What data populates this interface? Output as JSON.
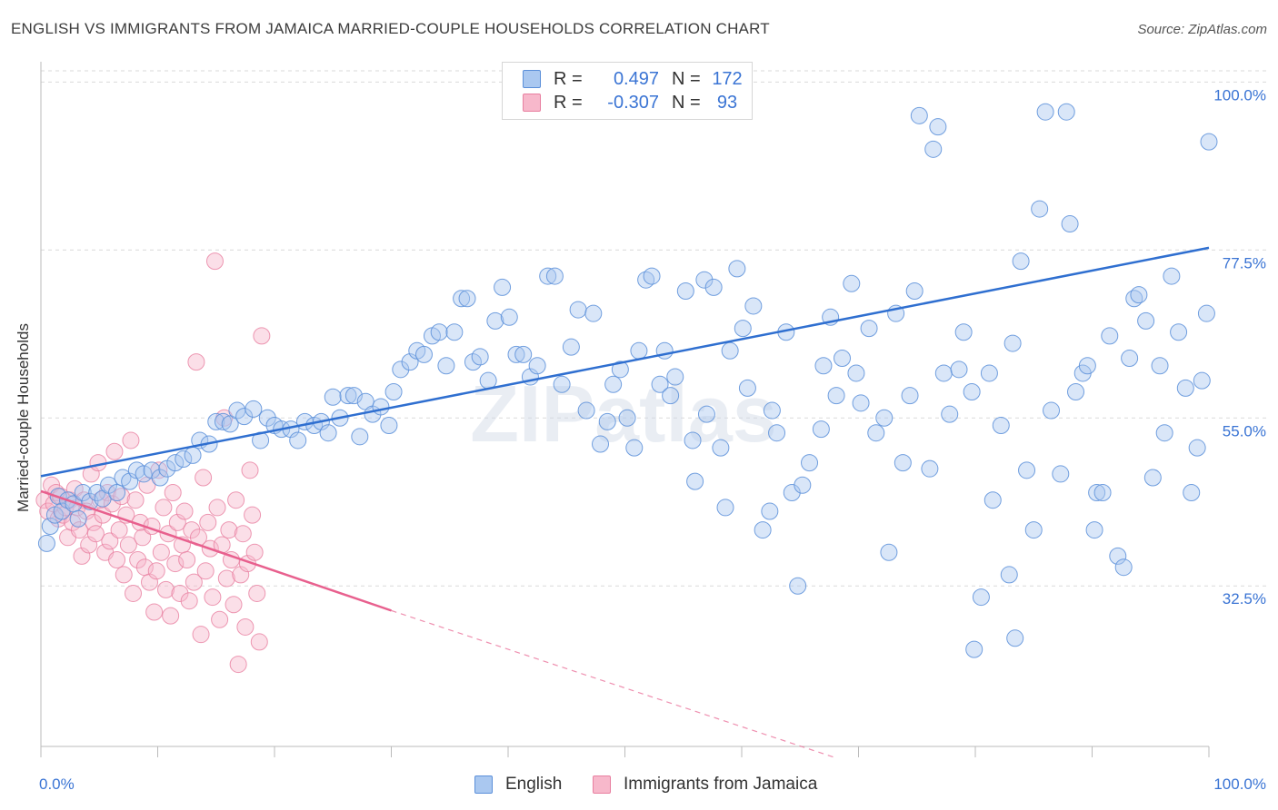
{
  "title": "ENGLISH VS IMMIGRANTS FROM JAMAICA MARRIED-COUPLE HOUSEHOLDS CORRELATION CHART",
  "source": "Source: ZipAtlas.com",
  "watermark": "ZIPatlas",
  "legend": {
    "rows": [
      {
        "r_label": "R =",
        "r_value": "0.497",
        "n_label": "N =",
        "n_value": "172"
      },
      {
        "r_label": "R =",
        "r_value": "-0.307",
        "n_label": "N =",
        "n_value": "93"
      }
    ]
  },
  "bottom_legend": [
    "English",
    "Immigrants from Jamaica"
  ],
  "colors": {
    "english_fill": "#aac8f0",
    "english_stroke": "#5b8fd9",
    "english_line": "#2f6fd0",
    "jamaica_fill": "#f7b8cb",
    "jamaica_stroke": "#e87fa0",
    "jamaica_line": "#e8608e",
    "tick_label": "#3a74d4",
    "grid": "#d9d9d9"
  },
  "chart_data": {
    "type": "scatter",
    "xlabel": "",
    "ylabel": "Married-couple Households",
    "xlim": [
      0,
      100
    ],
    "ylim": [
      11,
      101.5
    ],
    "x_tick_labels": [
      {
        "value": 0,
        "label": "0.0%"
      },
      {
        "value": 100,
        "label": "100.0%"
      }
    ],
    "y_tick_labels": [
      {
        "value": 100,
        "label": "100.0%"
      },
      {
        "value": 77.5,
        "label": "77.5%"
      },
      {
        "value": 55,
        "label": "55.0%"
      },
      {
        "value": 32.5,
        "label": "32.5%"
      }
    ],
    "grid": true,
    "series": [
      {
        "name": "English",
        "trend": {
          "x0": 0,
          "y0": 47.2,
          "x1": 100,
          "y1": 77.8
        },
        "points": [
          [
            0.5,
            38.2
          ],
          [
            0.8,
            40.5
          ],
          [
            1.2,
            42
          ],
          [
            1.5,
            44.5
          ],
          [
            1.8,
            42.5
          ],
          [
            2.3,
            44
          ],
          [
            2.8,
            43.5
          ],
          [
            3.2,
            41.5
          ],
          [
            3.6,
            45
          ],
          [
            4.2,
            43.8
          ],
          [
            4.8,
            45
          ],
          [
            5.3,
            44.2
          ],
          [
            5.8,
            46
          ],
          [
            6.5,
            45
          ],
          [
            7,
            47
          ],
          [
            7.6,
            46.5
          ],
          [
            8.2,
            48
          ],
          [
            8.8,
            47.5
          ],
          [
            9.5,
            48
          ],
          [
            10.2,
            47
          ],
          [
            10.8,
            48.2
          ],
          [
            11.5,
            49
          ],
          [
            12.2,
            49.5
          ],
          [
            13,
            50
          ],
          [
            13.6,
            52
          ],
          [
            14.4,
            51.5
          ],
          [
            15,
            54.5
          ],
          [
            15.6,
            54.5
          ],
          [
            16.2,
            54.2
          ],
          [
            16.8,
            56
          ],
          [
            17.4,
            55.2
          ],
          [
            18.2,
            56.2
          ],
          [
            18.8,
            52
          ],
          [
            19.4,
            55
          ],
          [
            20,
            54
          ],
          [
            20.6,
            53.5
          ],
          [
            21.4,
            53.5
          ],
          [
            22,
            52
          ],
          [
            22.6,
            54.5
          ],
          [
            23.4,
            54
          ],
          [
            24,
            54.5
          ],
          [
            24.6,
            53
          ],
          [
            25,
            57.8
          ],
          [
            25.6,
            55
          ],
          [
            26.3,
            58
          ],
          [
            26.8,
            58
          ],
          [
            27.3,
            52.5
          ],
          [
            27.8,
            57.2
          ],
          [
            28.4,
            55.5
          ],
          [
            29.1,
            56.5
          ],
          [
            29.8,
            54
          ],
          [
            30.2,
            58.5
          ],
          [
            30.8,
            61.5
          ],
          [
            31.6,
            62.5
          ],
          [
            32.2,
            64
          ],
          [
            32.8,
            63.5
          ],
          [
            33.5,
            66
          ],
          [
            34.1,
            66.5
          ],
          [
            34.7,
            62
          ],
          [
            35.4,
            66.5
          ],
          [
            36,
            71
          ],
          [
            36.5,
            71
          ],
          [
            37,
            62.5
          ],
          [
            37.6,
            63.2
          ],
          [
            38.3,
            60
          ],
          [
            38.9,
            68
          ],
          [
            39.5,
            72.5
          ],
          [
            40.1,
            68.5
          ],
          [
            40.7,
            63.5
          ],
          [
            41.3,
            63.5
          ],
          [
            41.9,
            60.5
          ],
          [
            42.5,
            62
          ],
          [
            43.4,
            74
          ],
          [
            44,
            74
          ],
          [
            44.6,
            59.5
          ],
          [
            45.4,
            64.5
          ],
          [
            46,
            69.5
          ],
          [
            46.7,
            56
          ],
          [
            47.3,
            69
          ],
          [
            47.9,
            51.5
          ],
          [
            48.5,
            54.5
          ],
          [
            49,
            59.5
          ],
          [
            49.6,
            61.5
          ],
          [
            50.2,
            55
          ],
          [
            50.8,
            51
          ],
          [
            51.2,
            64
          ],
          [
            51.8,
            73.5
          ],
          [
            52.3,
            74
          ],
          [
            53,
            59.5
          ],
          [
            53.4,
            64
          ],
          [
            53.9,
            58
          ],
          [
            54.3,
            60.5
          ],
          [
            55.2,
            72
          ],
          [
            55.8,
            52
          ],
          [
            56,
            46.5
          ],
          [
            56.8,
            73.5
          ],
          [
            57,
            55.5
          ],
          [
            57.6,
            72.5
          ],
          [
            58.2,
            51
          ],
          [
            58.6,
            43
          ],
          [
            59,
            64
          ],
          [
            59.6,
            75
          ],
          [
            60.1,
            67
          ],
          [
            60.5,
            59
          ],
          [
            61,
            70
          ],
          [
            61.8,
            40
          ],
          [
            62.4,
            42.5
          ],
          [
            62.6,
            56
          ],
          [
            63,
            53
          ],
          [
            63.8,
            66.5
          ],
          [
            64.3,
            45
          ],
          [
            64.8,
            32.5
          ],
          [
            65.2,
            46
          ],
          [
            65.8,
            49
          ],
          [
            66.8,
            53.5
          ],
          [
            67,
            62
          ],
          [
            67.6,
            68.5
          ],
          [
            68.1,
            58
          ],
          [
            68.6,
            63
          ],
          [
            69.4,
            73
          ],
          [
            69.8,
            61
          ],
          [
            70.2,
            57
          ],
          [
            70.9,
            67
          ],
          [
            71.5,
            53
          ],
          [
            72.2,
            55
          ],
          [
            72.6,
            37
          ],
          [
            73.2,
            69
          ],
          [
            73.8,
            49
          ],
          [
            74.4,
            58
          ],
          [
            74.8,
            72
          ],
          [
            75.2,
            95.5
          ],
          [
            76.1,
            48.2
          ],
          [
            76.4,
            91
          ],
          [
            76.8,
            94
          ],
          [
            77.3,
            61
          ],
          [
            77.8,
            55.5
          ],
          [
            78.6,
            61.5
          ],
          [
            79,
            66.5
          ],
          [
            79.7,
            58.5
          ],
          [
            79.9,
            24
          ],
          [
            80.5,
            31
          ],
          [
            81.2,
            61
          ],
          [
            81.5,
            44
          ],
          [
            82.2,
            54
          ],
          [
            82.9,
            34
          ],
          [
            83.2,
            65
          ],
          [
            83.4,
            25.5
          ],
          [
            83.9,
            76
          ],
          [
            84.4,
            48
          ],
          [
            85,
            40
          ],
          [
            85.5,
            83
          ],
          [
            86,
            96
          ],
          [
            86.5,
            56
          ],
          [
            87.3,
            47.5
          ],
          [
            87.8,
            96
          ],
          [
            88.1,
            81
          ],
          [
            88.6,
            58.5
          ],
          [
            89.2,
            61
          ],
          [
            89.6,
            62
          ],
          [
            90.2,
            40
          ],
          [
            90.4,
            45
          ],
          [
            90.9,
            45
          ],
          [
            91.5,
            66
          ],
          [
            92.2,
            36.5
          ],
          [
            92.7,
            35
          ],
          [
            93.2,
            63
          ],
          [
            93.6,
            71
          ],
          [
            94,
            71.5
          ],
          [
            94.6,
            68
          ],
          [
            95.2,
            47
          ],
          [
            95.8,
            62
          ],
          [
            96.2,
            53
          ],
          [
            96.8,
            74
          ],
          [
            97.4,
            66.5
          ],
          [
            98,
            59
          ],
          [
            98.5,
            45
          ],
          [
            99,
            51
          ],
          [
            99.4,
            60
          ],
          [
            99.8,
            69
          ],
          [
            100,
            92
          ]
        ]
      },
      {
        "name": "Immigrants from Jamaica",
        "trend": {
          "x0": 0,
          "y0": 45.2,
          "x1": 30,
          "y1": 29.2,
          "x_dash_end": 68,
          "y_dash_end": 9.5
        },
        "points": [
          [
            0.3,
            44
          ],
          [
            0.6,
            42.5
          ],
          [
            0.9,
            46
          ],
          [
            1.1,
            43.5
          ],
          [
            1.3,
            45
          ],
          [
            1.5,
            41.5
          ],
          [
            1.7,
            44.5
          ],
          [
            1.9,
            42
          ],
          [
            2.1,
            43
          ],
          [
            2.3,
            39
          ],
          [
            2.5,
            44
          ],
          [
            2.7,
            41
          ],
          [
            2.9,
            45.5
          ],
          [
            3.1,
            43
          ],
          [
            3.3,
            40
          ],
          [
            3.5,
            36.5
          ],
          [
            3.7,
            44
          ],
          [
            3.9,
            42.5
          ],
          [
            4.1,
            38
          ],
          [
            4.3,
            47.5
          ],
          [
            4.5,
            41
          ],
          [
            4.7,
            39.5
          ],
          [
            4.9,
            49
          ],
          [
            5.1,
            44
          ],
          [
            5.3,
            42
          ],
          [
            5.5,
            37
          ],
          [
            5.7,
            45
          ],
          [
            5.9,
            38.5
          ],
          [
            6.1,
            43.5
          ],
          [
            6.3,
            50.5
          ],
          [
            6.5,
            36
          ],
          [
            6.7,
            40
          ],
          [
            6.9,
            44.5
          ],
          [
            7.1,
            34
          ],
          [
            7.3,
            42
          ],
          [
            7.5,
            38
          ],
          [
            7.7,
            52
          ],
          [
            7.9,
            31.5
          ],
          [
            8.1,
            44
          ],
          [
            8.3,
            36
          ],
          [
            8.5,
            41
          ],
          [
            8.7,
            39
          ],
          [
            8.9,
            35
          ],
          [
            9.1,
            46
          ],
          [
            9.3,
            33
          ],
          [
            9.5,
            40.5
          ],
          [
            9.7,
            29
          ],
          [
            9.9,
            34.5
          ],
          [
            10.1,
            48
          ],
          [
            10.3,
            37
          ],
          [
            10.5,
            43
          ],
          [
            10.7,
            32
          ],
          [
            10.9,
            39.5
          ],
          [
            11.1,
            28.5
          ],
          [
            11.3,
            45
          ],
          [
            11.5,
            35.5
          ],
          [
            11.7,
            41
          ],
          [
            11.9,
            31.5
          ],
          [
            12.1,
            38
          ],
          [
            12.3,
            42.5
          ],
          [
            12.5,
            36
          ],
          [
            12.7,
            30.5
          ],
          [
            12.9,
            40
          ],
          [
            13.1,
            33
          ],
          [
            13.3,
            62.5
          ],
          [
            13.5,
            39
          ],
          [
            13.7,
            26
          ],
          [
            13.9,
            47
          ],
          [
            14.1,
            34.5
          ],
          [
            14.3,
            41
          ],
          [
            14.5,
            37.5
          ],
          [
            14.7,
            31
          ],
          [
            14.9,
            76
          ],
          [
            15.1,
            43
          ],
          [
            15.3,
            28
          ],
          [
            15.5,
            38
          ],
          [
            15.7,
            55
          ],
          [
            15.9,
            33.5
          ],
          [
            16.1,
            40
          ],
          [
            16.3,
            36
          ],
          [
            16.5,
            30
          ],
          [
            16.7,
            44
          ],
          [
            16.9,
            22
          ],
          [
            17.1,
            34
          ],
          [
            17.3,
            39.5
          ],
          [
            17.5,
            27
          ],
          [
            17.7,
            35.5
          ],
          [
            17.9,
            48
          ],
          [
            18.1,
            42
          ],
          [
            18.3,
            37
          ],
          [
            18.5,
            31.5
          ],
          [
            18.7,
            25
          ],
          [
            18.9,
            66
          ]
        ]
      }
    ]
  }
}
